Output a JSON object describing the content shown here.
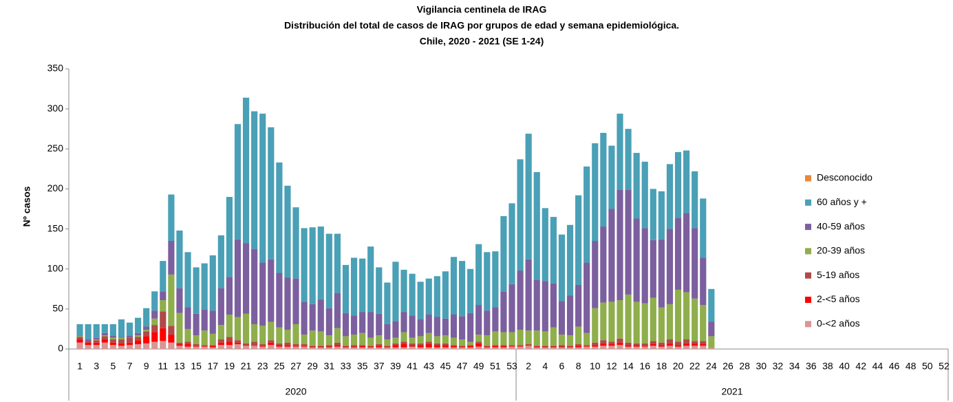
{
  "chart_data": {
    "type": "stacked-bar",
    "title": "Vigilancia centinela de IRAG",
    "subtitle": [
      "Distribución del total de casos de IRAG por  grupos de edad y semana epidemiológica.",
      "Chile, 2020 - 2021 (SE 1-24)"
    ],
    "y_label": "Nº casos",
    "ylim": [
      0,
      350
    ],
    "yticks": [
      0,
      50,
      100,
      150,
      200,
      250,
      300,
      350
    ],
    "x_groups": [
      {
        "label": "2020",
        "weeks": 53
      },
      {
        "label": "2021",
        "weeks": 52
      }
    ],
    "categories": [
      "1",
      null,
      "3",
      null,
      "5",
      null,
      "7",
      null,
      "9",
      null,
      "11",
      null,
      "13",
      null,
      "15",
      null,
      "17",
      null,
      "19",
      null,
      "21",
      null,
      "23",
      null,
      "25",
      null,
      "27",
      null,
      "29",
      null,
      "31",
      null,
      "33",
      null,
      "35",
      null,
      "37",
      null,
      "39",
      null,
      "41",
      null,
      "43",
      null,
      "45",
      null,
      "47",
      null,
      "49",
      null,
      "51",
      null,
      "53",
      null,
      "2",
      null,
      "4",
      null,
      "6",
      null,
      "8",
      null,
      "10",
      null,
      "12",
      null,
      "14",
      null,
      "16",
      null,
      "18",
      null,
      "20",
      null,
      "22",
      null,
      "24",
      null,
      "26",
      null,
      "28",
      null,
      "30",
      null,
      "32",
      null,
      "34",
      null,
      "36",
      null,
      "38",
      null,
      "40",
      null,
      "42",
      null,
      "44",
      null,
      "46",
      null,
      "48",
      null,
      "50",
      null,
      "52"
    ],
    "legend": "right",
    "series": [
      {
        "name": "0-<2 años",
        "color": "#d99694",
        "values": [
          8,
          5,
          5,
          8,
          5,
          4,
          5,
          6,
          7,
          9,
          10,
          8,
          4,
          3,
          3,
          3,
          2,
          5,
          5,
          6,
          4,
          4,
          3,
          5,
          3,
          3,
          3,
          3,
          2,
          2,
          2,
          3,
          2,
          2,
          2,
          2,
          2,
          2,
          2,
          2,
          3,
          2,
          2,
          2,
          2,
          2,
          2,
          2,
          3,
          2,
          2,
          2,
          3,
          3,
          4,
          2,
          2,
          2,
          2,
          2,
          2,
          3,
          3,
          4,
          4,
          5,
          3,
          3,
          3,
          4,
          3,
          4,
          3,
          4,
          4,
          4,
          1,
          null,
          null,
          null,
          null,
          null,
          null,
          null,
          null,
          null,
          null,
          null,
          null,
          null,
          null,
          null,
          null,
          null,
          null,
          null,
          null,
          null,
          null,
          null,
          null,
          null,
          null,
          null,
          null
        ]
      },
      {
        "name": "2-<5 años",
        "color": "#ff0000",
        "values": [
          4,
          3,
          3,
          4,
          3,
          3,
          3,
          5,
          9,
          12,
          16,
          10,
          2,
          3,
          1,
          1,
          2,
          3,
          4,
          2,
          1,
          1,
          1,
          3,
          2,
          2,
          1,
          1,
          1,
          1,
          1,
          2,
          1,
          1,
          2,
          1,
          2,
          1,
          3,
          4,
          2,
          3,
          4,
          3,
          3,
          2,
          1,
          2,
          4,
          1,
          2,
          2,
          1,
          1,
          1,
          1,
          1,
          1,
          1,
          1,
          2,
          1,
          2,
          3,
          2,
          3,
          2,
          2,
          1,
          2,
          2,
          3,
          2,
          3,
          3,
          2,
          0,
          null,
          null,
          null,
          null,
          null,
          null,
          null,
          null,
          null,
          null,
          null,
          null,
          null,
          null,
          null,
          null,
          null,
          null,
          null,
          null,
          null,
          null,
          null,
          null,
          null,
          null,
          null,
          null
        ]
      },
      {
        "name": "5-19 años",
        "color": "#b04a48",
        "values": [
          3,
          2,
          3,
          4,
          4,
          5,
          6,
          4,
          6,
          9,
          21,
          11,
          2,
          3,
          2,
          1,
          1,
          4,
          6,
          3,
          2,
          4,
          2,
          3,
          2,
          3,
          2,
          2,
          1,
          1,
          2,
          3,
          1,
          2,
          1,
          1,
          2,
          1,
          2,
          3,
          2,
          2,
          3,
          2,
          2,
          1,
          1,
          1,
          2,
          1,
          1,
          1,
          1,
          1,
          1,
          1,
          1,
          1,
          2,
          1,
          2,
          1,
          3,
          4,
          3,
          5,
          3,
          2,
          3,
          4,
          3,
          5,
          4,
          5,
          3,
          4,
          0,
          null,
          null,
          null,
          null,
          null,
          null,
          null,
          null,
          null,
          null,
          null,
          null,
          null,
          null,
          null,
          null,
          null,
          null,
          null,
          null,
          null,
          null,
          null,
          null,
          null,
          null,
          null,
          null
        ]
      },
      {
        "name": "20-39 años",
        "color": "#8fae4c",
        "values": [
          1,
          0,
          1,
          1,
          2,
          2,
          0,
          2,
          2,
          8,
          14,
          64,
          37,
          16,
          11,
          18,
          14,
          18,
          28,
          29,
          37,
          22,
          23,
          23,
          20,
          16,
          25,
          12,
          19,
          18,
          12,
          18,
          12,
          13,
          15,
          10,
          11,
          8,
          7,
          12,
          7,
          9,
          11,
          9,
          10,
          9,
          8,
          4,
          9,
          13,
          17,
          16,
          16,
          19,
          17,
          19,
          18,
          23,
          13,
          13,
          22,
          15,
          43,
          47,
          50,
          48,
          60,
          52,
          50,
          54,
          44,
          44,
          65,
          59,
          53,
          45,
          15,
          null,
          null,
          null,
          null,
          null,
          null,
          null,
          null,
          null,
          null,
          null,
          null,
          null,
          null,
          null,
          null,
          null,
          null,
          null,
          null,
          null,
          null,
          null,
          null,
          null,
          null,
          null,
          null
        ]
      },
      {
        "name": "40-59 años",
        "color": "#7c5f9f",
        "values": [
          1,
          2,
          2,
          3,
          3,
          1,
          3,
          3,
          4,
          10,
          11,
          42,
          31,
          27,
          27,
          26,
          29,
          46,
          47,
          97,
          88,
          94,
          79,
          78,
          68,
          65,
          57,
          41,
          33,
          40,
          34,
          44,
          29,
          24,
          26,
          32,
          27,
          19,
          21,
          25,
          28,
          21,
          23,
          24,
          21,
          29,
          29,
          36,
          37,
          31,
          30,
          51,
          60,
          74,
          89,
          63,
          63,
          55,
          42,
          50,
          52,
          88,
          84,
          95,
          116,
          138,
          131,
          104,
          94,
          72,
          85,
          94,
          90,
          99,
          88,
          59,
          18,
          null,
          null,
          null,
          null,
          null,
          null,
          null,
          null,
          null,
          null,
          null,
          null,
          null,
          null,
          null,
          null,
          null,
          null,
          null,
          null,
          null,
          null,
          null,
          null,
          null,
          null,
          null,
          null
        ]
      },
      {
        "name": "60 años y +",
        "color": "#4aa0b6",
        "values": [
          14,
          19,
          17,
          11,
          14,
          22,
          16,
          19,
          23,
          24,
          38,
          58,
          72,
          69,
          58,
          58,
          69,
          66,
          100,
          144,
          182,
          172,
          186,
          165,
          138,
          115,
          89,
          92,
          96,
          91,
          93,
          74,
          60,
          72,
          67,
          82,
          58,
          52,
          74,
          53,
          52,
          47,
          45,
          51,
          59,
          72,
          69,
          55,
          76,
          73,
          70,
          94,
          101,
          139,
          157,
          135,
          91,
          83,
          83,
          88,
          112,
          120,
          122,
          117,
          79,
          95,
          76,
          82,
          83,
          64,
          60,
          81,
          82,
          78,
          71,
          74,
          41,
          null,
          null,
          null,
          null,
          null,
          null,
          null,
          null,
          null,
          null,
          null,
          null,
          null,
          null,
          null,
          null,
          null,
          null,
          null,
          null,
          null,
          null,
          null,
          null,
          null,
          null,
          null,
          null
        ]
      },
      {
        "name": "Desconocido",
        "color": "#e8883a",
        "values": [
          0,
          0,
          0,
          0,
          0,
          0,
          0,
          0,
          0,
          0,
          0,
          0,
          0,
          0,
          0,
          0,
          0,
          0,
          0,
          0,
          0,
          0,
          0,
          0,
          0,
          0,
          0,
          0,
          0,
          0,
          0,
          0,
          0,
          0,
          0,
          0,
          0,
          0,
          0,
          0,
          0,
          0,
          0,
          0,
          0,
          0,
          0,
          0,
          0,
          0,
          0,
          0,
          0,
          0,
          0,
          0,
          0,
          0,
          0,
          0,
          0,
          0,
          0,
          0,
          0,
          0,
          0,
          0,
          0,
          0,
          0,
          0,
          0,
          0,
          0,
          0,
          0,
          null,
          null,
          null,
          null,
          null,
          null,
          null,
          null,
          null,
          null,
          null,
          null,
          null,
          null,
          null,
          null,
          null,
          null,
          null,
          null,
          null,
          null,
          null,
          null,
          null,
          null,
          null,
          null
        ]
      }
    ]
  }
}
